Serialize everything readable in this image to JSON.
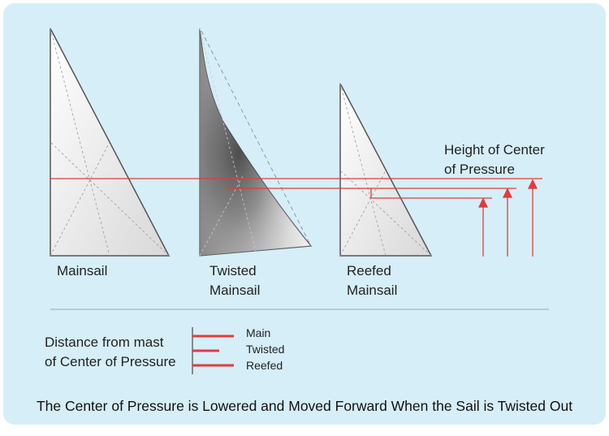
{
  "colors": {
    "background": "#d6eef7",
    "sail_fill": "#e6e6e6",
    "sail_edge": "#555555",
    "pressure_line": "#e23b3b",
    "guide_dash": "#8a9aa3"
  },
  "sails": [
    {
      "line1": "Mainsail",
      "line2": ""
    },
    {
      "line1": "Twisted",
      "line2": "Mainsail"
    },
    {
      "line1": "Reefed",
      "line2": "Mainsail"
    }
  ],
  "height_label": {
    "line1": "Height of Center",
    "line2": "of Pressure"
  },
  "distance_legend": {
    "title_line1": "Distance from mast",
    "title_line2": "of Center of Pressure",
    "items": [
      "Main",
      "Twisted",
      "Reefed"
    ]
  },
  "caption": "The Center of Pressure is  Lowered and Moved Forward When the Sail is Twisted Out"
}
